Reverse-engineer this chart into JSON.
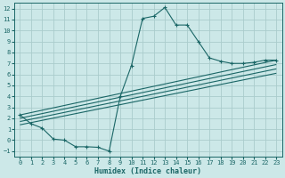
{
  "xlabel": "Humidex (Indice chaleur)",
  "bg_color": "#cce8e8",
  "grid_color": "#aacccc",
  "line_color": "#1a6666",
  "xlim": [
    -0.5,
    23.5
  ],
  "ylim": [
    -1.5,
    12.5
  ],
  "yticks": [
    -1,
    0,
    1,
    2,
    3,
    4,
    5,
    6,
    7,
    8,
    9,
    10,
    11,
    12
  ],
  "xticks": [
    0,
    1,
    2,
    3,
    4,
    5,
    6,
    7,
    8,
    9,
    10,
    11,
    12,
    13,
    14,
    15,
    16,
    17,
    18,
    19,
    20,
    21,
    22,
    23
  ],
  "main_line_x": [
    0,
    1,
    2,
    3,
    4,
    5,
    6,
    7,
    8,
    9,
    10,
    11,
    12,
    13,
    14,
    15,
    16,
    17,
    18,
    19,
    20,
    21,
    22,
    23
  ],
  "main_line_y": [
    2.3,
    1.5,
    1.1,
    0.1,
    0.0,
    -0.6,
    -0.6,
    -0.65,
    -1.0,
    4.0,
    6.8,
    11.1,
    11.3,
    12.1,
    10.5,
    10.5,
    9.0,
    7.5,
    7.2,
    7.0,
    7.0,
    7.1,
    7.3,
    7.3
  ],
  "linear_lines": [
    {
      "x": [
        0,
        23
      ],
      "y": [
        2.3,
        7.3
      ]
    },
    {
      "x": [
        0,
        23
      ],
      "y": [
        2.0,
        6.9
      ]
    },
    {
      "x": [
        0,
        23
      ],
      "y": [
        1.7,
        6.5
      ]
    },
    {
      "x": [
        0,
        23
      ],
      "y": [
        1.4,
        6.1
      ]
    }
  ],
  "tick_fontsize": 5.0,
  "xlabel_fontsize": 6.0
}
